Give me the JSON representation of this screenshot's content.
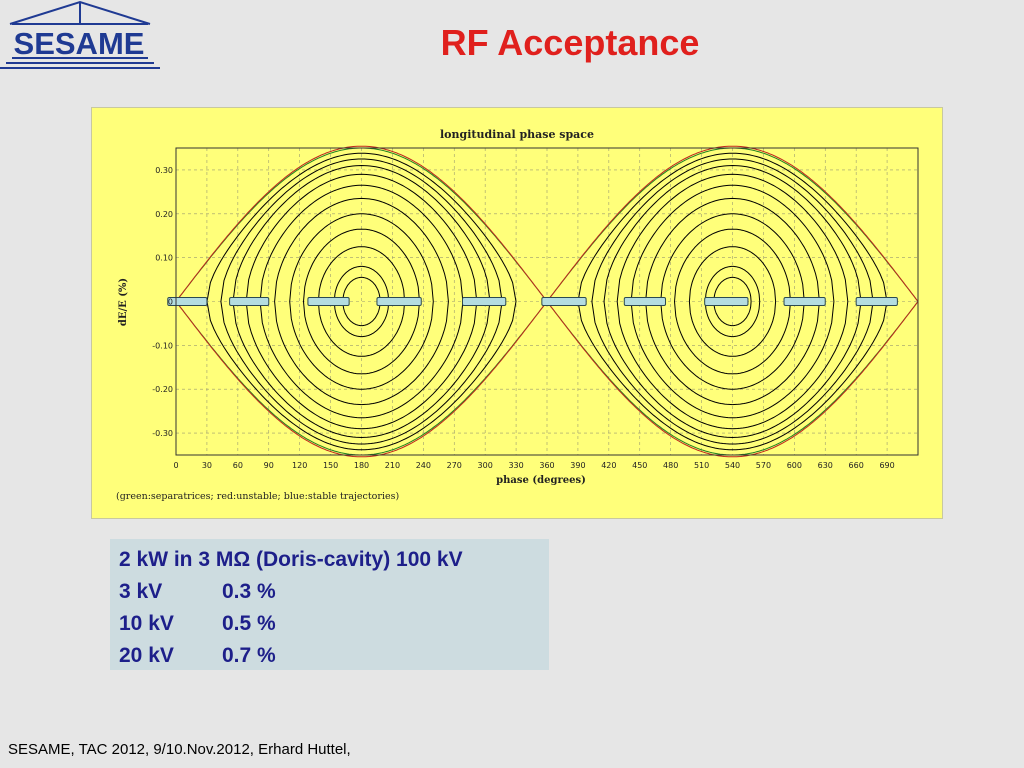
{
  "slide": {
    "title": "RF Acceptance",
    "logo_text": "SESAME",
    "footer": "SESAME, TAC 2012, 9/10.Nov.2012, Erhard Huttel,"
  },
  "info_box": {
    "headline": "2 kW in 3 MΩ (Doris-cavity) 100 kV",
    "rows": [
      {
        "voltage": "3 kV",
        "acceptance": "0.3 %"
      },
      {
        "voltage": "10 kV",
        "acceptance": "0.5 %"
      },
      {
        "voltage": "20 kV",
        "acceptance": "0.7 %"
      }
    ]
  },
  "colors": {
    "title": "#e0201d",
    "logo": "#1f3a93",
    "panel_bg": "#ffff7a",
    "info_text": "#1d1f8a",
    "info_bg": "#cddce0",
    "stable": "#000000",
    "unstable": "#c0281e",
    "separatrix": "#208020",
    "bucket_marker": "#b4dde0"
  },
  "chart_data": {
    "type": "line",
    "title": "longitudinal phase space",
    "xlabel": "phase (degrees)",
    "ylabel": "dE/E (%)",
    "caption": "(green:separatrices; red:unstable; blue:stable trajectories)",
    "xlim": [
      0,
      720
    ],
    "ylim": [
      -0.35,
      0.35
    ],
    "x_ticks": [
      0,
      30,
      60,
      90,
      120,
      150,
      180,
      210,
      240,
      270,
      300,
      330,
      360,
      390,
      420,
      450,
      480,
      510,
      540,
      570,
      600,
      630,
      660,
      690
    ],
    "y_ticks": [
      0.3,
      0.2,
      0.1,
      0,
      -0.1,
      -0.2,
      -0.3
    ],
    "y_tick_labels": [
      "0.30",
      "0.20",
      "0.10",
      "0",
      "-0.10",
      "-0.20",
      "-0.30"
    ],
    "grid": true,
    "separatrix_max_dE": 0.35,
    "bucket_centers": [
      180,
      540
    ],
    "stable_orbit_amplitudes": [
      0.055,
      0.08,
      0.125,
      0.165,
      0.2,
      0.235,
      0.265,
      0.29,
      0.31,
      0.325,
      0.338
    ],
    "bucket_markers": [
      [
        -8,
        30
      ],
      [
        52,
        90
      ],
      [
        128,
        168
      ],
      [
        195,
        238
      ],
      [
        278,
        320
      ],
      [
        355,
        398
      ],
      [
        435,
        475
      ],
      [
        513,
        555
      ],
      [
        590,
        630
      ],
      [
        660,
        700
      ]
    ]
  }
}
